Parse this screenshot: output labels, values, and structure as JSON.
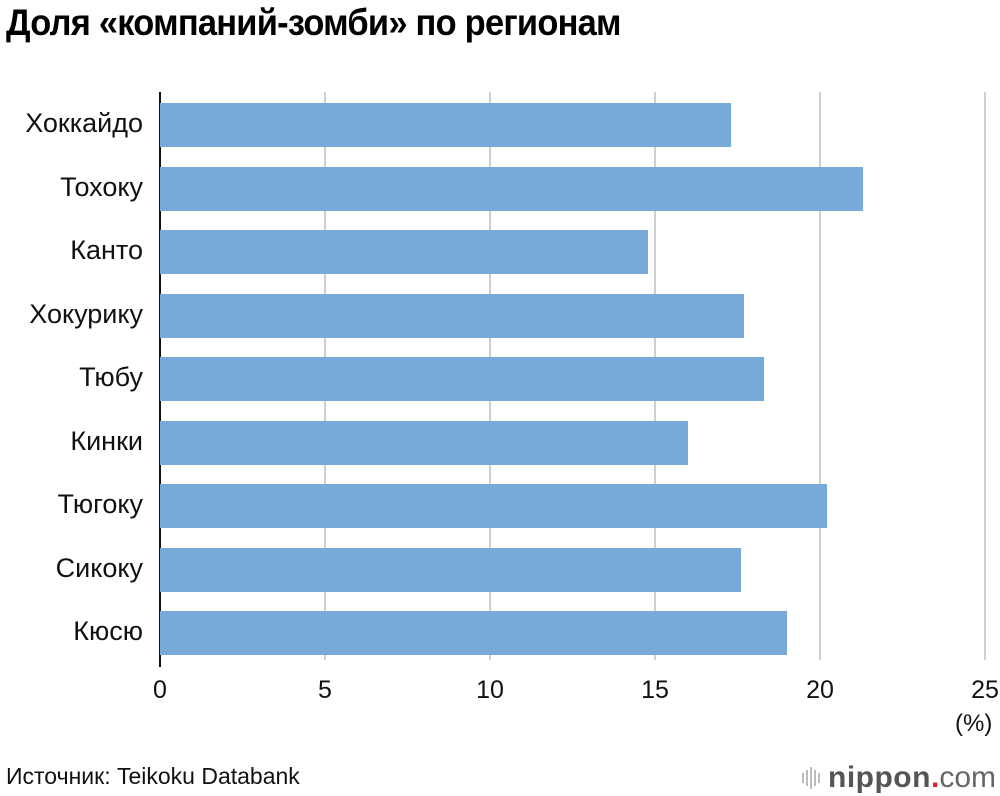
{
  "title": "Доля «компаний-зомби» по регионам",
  "source": "Источник: Teikoku Databank",
  "logo": {
    "word": "nippon",
    "dot": ".",
    "tld": "com",
    "icon": "sound-wave-icon"
  },
  "colors": {
    "bar": "#77a9d9",
    "grid": "#cfcfcf",
    "axis": "#111111",
    "logo_dot": "#e0202a"
  },
  "axis": {
    "ticks": [
      "0",
      "5",
      "10",
      "15",
      "20",
      "25"
    ],
    "unit": "(%)"
  },
  "chart_data": {
    "type": "bar",
    "orientation": "horizontal",
    "title": "Доля «компаний-зомби» по регионам",
    "categories": [
      "Хоккайдо",
      "Тохоку",
      "Канто",
      "Хокурику",
      "Тюбу",
      "Кинки",
      "Тюгоку",
      "Сикоку",
      "Кюсю"
    ],
    "values": [
      17.3,
      21.3,
      14.8,
      17.7,
      18.3,
      16.0,
      20.2,
      17.6,
      19.0
    ],
    "xlabel": "(%)",
    "ylabel": "",
    "xlim": [
      0,
      25
    ],
    "xticks": [
      0,
      5,
      10,
      15,
      20,
      25
    ],
    "grid": true,
    "legend": null,
    "source": "Источник: Teikoku Databank"
  }
}
